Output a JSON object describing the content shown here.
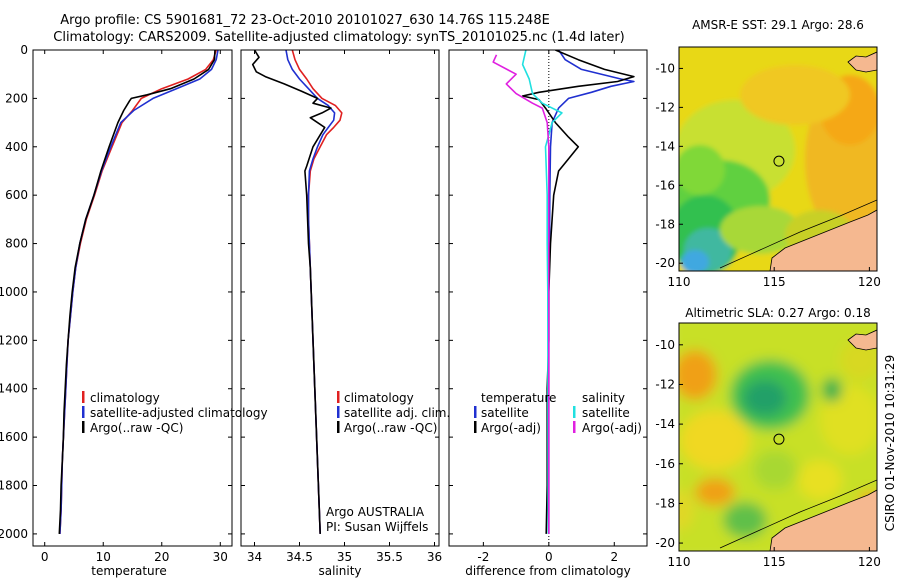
{
  "title": {
    "line1": "Argo profile: CS 5901681_72 23-Oct-2010 20101027_630 14.76S 115.248E",
    "line2": "Climatology: CARS2009. Satellite-adjusted climatology: synTS_20101025.nc (1.4d later)"
  },
  "credit": "CSIRO 01-Nov-2010 10:31:29",
  "argo_credit": {
    "line1": "Argo AUSTRALIA",
    "line2": "PI: Susan Wijffels"
  },
  "colors": {
    "climatology": "#e02020",
    "satellite": "#2030d0",
    "argo": "#000000",
    "sal_satellite": "#20e0e0",
    "sal_argo": "#e020e0"
  },
  "chart_data": [
    {
      "type": "line",
      "id": "temperature",
      "xlabel": "temperature",
      "ylabel": "",
      "xlim": [
        -2,
        32
      ],
      "ylim": [
        2050,
        0
      ],
      "xticks": [
        0,
        10,
        20,
        30
      ],
      "yticks": [
        0,
        200,
        400,
        600,
        800,
        1000,
        1200,
        1400,
        1600,
        1800,
        2000
      ],
      "legend": [
        "climatology",
        "satellite-adjusted climatology",
        "Argo(..raw -QC)"
      ],
      "series": [
        {
          "name": "climatology",
          "color": "#e02020",
          "points": [
            [
              29.3,
              0
            ],
            [
              28.8,
              40
            ],
            [
              27.5,
              80
            ],
            [
              24.5,
              120
            ],
            [
              20.0,
              160
            ],
            [
              16.5,
              200
            ],
            [
              15.0,
              250
            ],
            [
              13.2,
              300
            ],
            [
              11.5,
              400
            ],
            [
              9.8,
              500
            ],
            [
              8.5,
              600
            ],
            [
              7.1,
              700
            ],
            [
              6.1,
              800
            ],
            [
              5.3,
              900
            ],
            [
              4.8,
              1000
            ],
            [
              4.4,
              1100
            ],
            [
              4.0,
              1200
            ],
            [
              3.8,
              1300
            ],
            [
              3.6,
              1400
            ],
            [
              3.4,
              1500
            ],
            [
              3.2,
              1600
            ],
            [
              3.0,
              1700
            ],
            [
              2.9,
              1800
            ],
            [
              2.8,
              1900
            ],
            [
              2.6,
              2000
            ]
          ]
        },
        {
          "name": "satellite",
          "color": "#2030d0",
          "points": [
            [
              29.6,
              0
            ],
            [
              29.3,
              40
            ],
            [
              28.5,
              80
            ],
            [
              26.5,
              120
            ],
            [
              22.5,
              160
            ],
            [
              18.5,
              200
            ],
            [
              15.2,
              250
            ],
            [
              13.0,
              300
            ],
            [
              11.3,
              400
            ],
            [
              9.7,
              500
            ],
            [
              8.4,
              600
            ],
            [
              7.0,
              700
            ],
            [
              6.0,
              800
            ],
            [
              5.3,
              900
            ],
            [
              4.8,
              1000
            ],
            [
              4.4,
              1100
            ],
            [
              4.0,
              1200
            ],
            [
              3.8,
              1300
            ],
            [
              3.6,
              1400
            ],
            [
              3.4,
              1500
            ],
            [
              3.2,
              1600
            ],
            [
              3.0,
              1700
            ],
            [
              2.9,
              1800
            ],
            [
              2.8,
              1900
            ],
            [
              2.6,
              2000
            ]
          ]
        },
        {
          "name": "Argo",
          "color": "#000000",
          "points": [
            [
              29.1,
              0
            ],
            [
              29.0,
              40
            ],
            [
              28.0,
              80
            ],
            [
              25.5,
              120
            ],
            [
              21.5,
              160
            ],
            [
              17.5,
              185
            ],
            [
              14.8,
              200
            ],
            [
              14.5,
              210
            ],
            [
              13.5,
              250
            ],
            [
              12.5,
              300
            ],
            [
              11.0,
              400
            ],
            [
              9.6,
              500
            ],
            [
              8.4,
              600
            ],
            [
              7.0,
              700
            ],
            [
              6.0,
              800
            ],
            [
              5.2,
              900
            ],
            [
              4.7,
              1000
            ],
            [
              4.3,
              1100
            ],
            [
              4.0,
              1200
            ],
            [
              3.7,
              1300
            ],
            [
              3.5,
              1400
            ],
            [
              3.3,
              1500
            ],
            [
              3.2,
              1600
            ],
            [
              3.0,
              1700
            ],
            [
              2.8,
              1800
            ],
            [
              2.7,
              1900
            ],
            [
              2.5,
              2000
            ]
          ]
        }
      ]
    },
    {
      "type": "line",
      "id": "salinity",
      "xlabel": "salinity",
      "xlim": [
        33.85,
        36.05
      ],
      "ylim": [
        2050,
        0
      ],
      "xticks": [
        34,
        34.5,
        35,
        35.5,
        36
      ],
      "legend": [
        "climatology",
        "satellite adj. clim.",
        "Argo(..raw -QC)"
      ],
      "series": [
        {
          "name": "climatology",
          "color": "#e02020",
          "points": [
            [
              34.42,
              0
            ],
            [
              34.45,
              40
            ],
            [
              34.5,
              80
            ],
            [
              34.58,
              120
            ],
            [
              34.65,
              160
            ],
            [
              34.75,
              200
            ],
            [
              34.9,
              230
            ],
            [
              34.97,
              260
            ],
            [
              34.95,
              290
            ],
            [
              34.88,
              320
            ],
            [
              34.8,
              350
            ],
            [
              34.73,
              400
            ],
            [
              34.66,
              450
            ],
            [
              34.62,
              500
            ],
            [
              34.6,
              600
            ],
            [
              34.6,
              700
            ],
            [
              34.61,
              800
            ],
            [
              34.62,
              900
            ],
            [
              34.63,
              1000
            ],
            [
              34.64,
              1100
            ],
            [
              34.65,
              1200
            ],
            [
              34.66,
              1300
            ],
            [
              34.67,
              1400
            ],
            [
              34.68,
              1500
            ],
            [
              34.69,
              1600
            ],
            [
              34.7,
              1700
            ],
            [
              34.71,
              1800
            ],
            [
              34.72,
              1900
            ],
            [
              34.73,
              2000
            ]
          ]
        },
        {
          "name": "satellite",
          "color": "#2030d0",
          "points": [
            [
              34.35,
              0
            ],
            [
              34.37,
              40
            ],
            [
              34.42,
              80
            ],
            [
              34.5,
              120
            ],
            [
              34.6,
              160
            ],
            [
              34.7,
              200
            ],
            [
              34.82,
              230
            ],
            [
              34.89,
              260
            ],
            [
              34.88,
              290
            ],
            [
              34.82,
              320
            ],
            [
              34.76,
              350
            ],
            [
              34.7,
              400
            ],
            [
              34.65,
              450
            ],
            [
              34.61,
              500
            ],
            [
              34.6,
              600
            ],
            [
              34.6,
              700
            ],
            [
              34.61,
              800
            ],
            [
              34.62,
              900
            ],
            [
              34.63,
              1000
            ],
            [
              34.64,
              1100
            ],
            [
              34.65,
              1200
            ],
            [
              34.66,
              1300
            ],
            [
              34.67,
              1400
            ],
            [
              34.68,
              1500
            ],
            [
              34.69,
              1600
            ],
            [
              34.7,
              1700
            ],
            [
              34.71,
              1800
            ],
            [
              34.72,
              1900
            ],
            [
              34.73,
              2000
            ]
          ]
        },
        {
          "name": "Argo",
          "color": "#000000",
          "points": [
            [
              34.0,
              0
            ],
            [
              34.05,
              30
            ],
            [
              33.98,
              60
            ],
            [
              34.02,
              90
            ],
            [
              34.12,
              110
            ],
            [
              34.33,
              140
            ],
            [
              34.52,
              170
            ],
            [
              34.7,
              200
            ],
            [
              34.65,
              220
            ],
            [
              34.85,
              240
            ],
            [
              34.75,
              260
            ],
            [
              34.62,
              280
            ],
            [
              34.78,
              320
            ],
            [
              34.65,
              400
            ],
            [
              34.58,
              480
            ],
            [
              34.56,
              500
            ],
            [
              34.58,
              600
            ],
            [
              34.59,
              700
            ],
            [
              34.6,
              800
            ],
            [
              34.62,
              900
            ],
            [
              34.63,
              1000
            ],
            [
              34.64,
              1100
            ],
            [
              34.65,
              1200
            ],
            [
              34.66,
              1300
            ],
            [
              34.67,
              1400
            ],
            [
              34.68,
              1500
            ],
            [
              34.69,
              1600
            ],
            [
              34.7,
              1700
            ],
            [
              34.71,
              1800
            ],
            [
              34.72,
              1900
            ],
            [
              34.73,
              2000
            ]
          ]
        }
      ]
    },
    {
      "type": "line",
      "id": "difference",
      "xlabel": "difference from climatology",
      "xlim": [
        -3.05,
        3.0
      ],
      "ylim": [
        2050,
        0
      ],
      "xticks": [
        -2,
        0,
        2
      ],
      "legend_left": {
        "heading": "temperature",
        "items": [
          "satellite",
          "Argo(-adj)"
        ]
      },
      "legend_right": {
        "heading": "salinity",
        "items": [
          "satellite",
          "Argo(-adj)"
        ]
      },
      "series": [
        {
          "name": "temperature satellite",
          "color": "#2030d0",
          "points": [
            [
              0.3,
              0
            ],
            [
              0.5,
              40
            ],
            [
              1.0,
              80
            ],
            [
              2.2,
              120
            ],
            [
              2.6,
              130
            ],
            [
              1.9,
              150
            ],
            [
              1.3,
              175
            ],
            [
              0.6,
              200
            ],
            [
              0.3,
              240
            ],
            [
              0.1,
              300
            ],
            [
              0.05,
              400
            ],
            [
              0.03,
              600
            ],
            [
              0.02,
              800
            ],
            [
              0,
              1000
            ],
            [
              0,
              2000
            ]
          ]
        },
        {
          "name": "temperature Argo",
          "color": "#000000",
          "points": [
            [
              0.2,
              0
            ],
            [
              0.9,
              40
            ],
            [
              1.7,
              80
            ],
            [
              2.6,
              110
            ],
            [
              2.1,
              130
            ],
            [
              0.9,
              150
            ],
            [
              -0.3,
              175
            ],
            [
              -0.8,
              190
            ],
            [
              -0.3,
              205
            ],
            [
              -0.1,
              240
            ],
            [
              0.2,
              300
            ],
            [
              0.6,
              360
            ],
            [
              0.9,
              400
            ],
            [
              0.6,
              450
            ],
            [
              0.3,
              500
            ],
            [
              0.15,
              600
            ],
            [
              0.05,
              800
            ],
            [
              0,
              1000
            ],
            [
              0,
              1200
            ],
            [
              -0.05,
              1400
            ],
            [
              -0.05,
              1800
            ],
            [
              -0.08,
              2000
            ]
          ]
        },
        {
          "name": "salinity satellite",
          "color": "#20e0e0",
          "points": [
            [
              -0.7,
              0
            ],
            [
              -0.8,
              60
            ],
            [
              -0.6,
              120
            ],
            [
              -0.5,
              180
            ],
            [
              -0.2,
              220
            ],
            [
              0.4,
              260
            ],
            [
              0.1,
              300
            ],
            [
              -0.1,
              400
            ],
            [
              -0.05,
              600
            ],
            [
              -0.05,
              800
            ],
            [
              -0.03,
              1000
            ],
            [
              -0.02,
              2000
            ]
          ]
        },
        {
          "name": "salinity Argo",
          "color": "#e020e0",
          "points": [
            [
              -1.6,
              20
            ],
            [
              -1.7,
              50
            ],
            [
              -1.0,
              100
            ],
            [
              -1.3,
              140
            ],
            [
              -1.0,
              180
            ],
            [
              -0.5,
              220
            ],
            [
              -0.2,
              240
            ],
            [
              -0.05,
              300
            ],
            [
              0,
              400
            ],
            [
              0,
              1000
            ],
            [
              0,
              2000
            ]
          ]
        }
      ]
    },
    {
      "type": "heatmap",
      "id": "sst",
      "title": "AMSR-E SST: 29.1 Argo: 28.6",
      "xlim": [
        110,
        120.4
      ],
      "ylim": [
        -20.4,
        -8.9
      ],
      "xticks": [
        110,
        115,
        120
      ],
      "yticks": [
        -10,
        -12,
        -14,
        -16,
        -18,
        -20
      ],
      "marker": [
        115.25,
        -14.76
      ]
    },
    {
      "type": "heatmap",
      "id": "sla",
      "title": "Altimetric SLA: 0.27 Argo: 0.18",
      "xlim": [
        110,
        120.4
      ],
      "ylim": [
        -20.4,
        -8.9
      ],
      "xticks": [
        110,
        115,
        120
      ],
      "yticks": [
        -10,
        -12,
        -14,
        -16,
        -18,
        -20
      ],
      "marker": [
        115.25,
        -14.76
      ]
    }
  ]
}
